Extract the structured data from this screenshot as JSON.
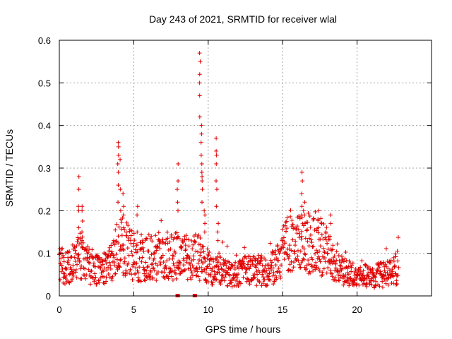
{
  "chart_data": {
    "type": "scatter",
    "title": "Day 243 of 2021, SRMTID for receiver wlal",
    "xlabel": "GPS time / hours",
    "ylabel": "SRMTID / TECUs",
    "xlim": [
      0,
      25
    ],
    "ylim": [
      0,
      0.6
    ],
    "xticks": [
      0,
      5,
      10,
      15,
      20
    ],
    "yticks": [
      0,
      0.1,
      0.2,
      0.3,
      0.4,
      0.5,
      0.6
    ],
    "xtick_labels": [
      "0",
      "5",
      "10",
      "15",
      "20"
    ],
    "ytick_labels": [
      "0",
      "0.1",
      "0.2",
      "0.3",
      "0.4",
      "0.5",
      "0.6"
    ],
    "grid": true,
    "marker": "plus",
    "color": "#e00000",
    "series": [
      {
        "name": "SRMTID",
        "baseline": [
          [
            0.0,
            0.07
          ],
          [
            0.5,
            0.07
          ],
          [
            1.0,
            0.08
          ],
          [
            1.5,
            0.1
          ],
          [
            2.0,
            0.07
          ],
          [
            2.5,
            0.06
          ],
          [
            3.0,
            0.07
          ],
          [
            3.5,
            0.08
          ],
          [
            4.0,
            0.12
          ],
          [
            4.5,
            0.11
          ],
          [
            5.0,
            0.09
          ],
          [
            5.5,
            0.08
          ],
          [
            6.0,
            0.09
          ],
          [
            6.5,
            0.09
          ],
          [
            7.0,
            0.1
          ],
          [
            7.5,
            0.09
          ],
          [
            8.0,
            0.1
          ],
          [
            8.5,
            0.09
          ],
          [
            9.0,
            0.09
          ],
          [
            9.5,
            0.09
          ],
          [
            10.0,
            0.07
          ],
          [
            10.5,
            0.06
          ],
          [
            11.0,
            0.06
          ],
          [
            11.5,
            0.05
          ],
          [
            12.0,
            0.05
          ],
          [
            12.5,
            0.06
          ],
          [
            13.0,
            0.06
          ],
          [
            13.5,
            0.06
          ],
          [
            14.0,
            0.06
          ],
          [
            14.5,
            0.07
          ],
          [
            15.0,
            0.1
          ],
          [
            15.5,
            0.13
          ],
          [
            16.0,
            0.14
          ],
          [
            16.5,
            0.13
          ],
          [
            17.0,
            0.12
          ],
          [
            17.5,
            0.12
          ],
          [
            18.0,
            0.1
          ],
          [
            18.5,
            0.07
          ],
          [
            19.0,
            0.06
          ],
          [
            19.5,
            0.05
          ],
          [
            20.0,
            0.04
          ],
          [
            20.5,
            0.05
          ],
          [
            21.0,
            0.04
          ],
          [
            21.5,
            0.05
          ],
          [
            22.0,
            0.05
          ],
          [
            22.5,
            0.06
          ],
          [
            22.8,
            0.07
          ]
        ],
        "spikes": [
          [
            1.3,
            [
              0.16,
              0.2,
              0.21,
              0.25,
              0.28
            ]
          ],
          [
            1.55,
            [
              0.13,
              0.15,
              0.2,
              0.21
            ]
          ],
          [
            3.95,
            [
              0.22,
              0.26,
              0.29,
              0.31,
              0.33,
              0.35,
              0.36
            ]
          ],
          [
            4.1,
            [
              0.18,
              0.2,
              0.25,
              0.32
            ]
          ],
          [
            4.3,
            [
              0.16,
              0.19,
              0.21,
              0.24
            ]
          ],
          [
            5.25,
            [
              0.15,
              0.19,
              0.21
            ]
          ],
          [
            7.95,
            [
              0.2,
              0.22,
              0.25,
              0.27,
              0.31
            ]
          ],
          [
            9.45,
            [
              0.42,
              0.47,
              0.5,
              0.52,
              0.55,
              0.57
            ]
          ],
          [
            9.55,
            [
              0.29,
              0.31,
              0.33,
              0.36,
              0.38,
              0.4
            ]
          ],
          [
            9.6,
            [
              0.22,
              0.25,
              0.27,
              0.28
            ]
          ],
          [
            9.75,
            [
              0.15,
              0.17,
              0.19,
              0.2
            ]
          ],
          [
            10.55,
            [
              0.21,
              0.25,
              0.27,
              0.31,
              0.33,
              0.34,
              0.37
            ]
          ],
          [
            10.65,
            [
              0.13,
              0.15,
              0.17
            ]
          ],
          [
            16.3,
            [
              0.19,
              0.21,
              0.24,
              0.27,
              0.29
            ]
          ],
          [
            16.5,
            [
              0.17,
              0.19,
              0.22
            ]
          ],
          [
            17.4,
            [
              0.16,
              0.18,
              0.2
            ]
          ],
          [
            18.2,
            [
              0.14,
              0.17,
              0.19
            ]
          ]
        ],
        "ground_markers": [
          7.95,
          9.1
        ]
      }
    ]
  }
}
